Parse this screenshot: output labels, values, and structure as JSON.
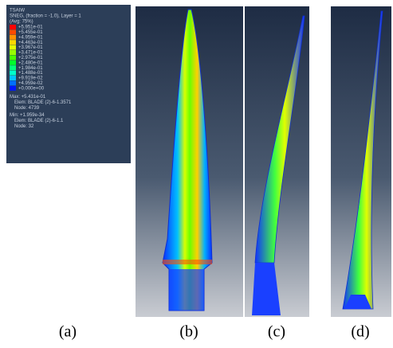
{
  "legend": {
    "title": "TSAIW",
    "subtitle": "SNEG, (fraction = -1.0), Layer = 1",
    "avg": "(Avg: 75%)",
    "entries": [
      {
        "label": "+5.951e-01",
        "color": "#ff0000"
      },
      {
        "label": "+5.455e-01",
        "color": "#ff4a00"
      },
      {
        "label": "+4.959e-01",
        "color": "#ff9300"
      },
      {
        "label": "+4.463e-01",
        "color": "#ffd800"
      },
      {
        "label": "+3.967e-01",
        "color": "#e2ff00"
      },
      {
        "label": "+3.471e-01",
        "color": "#98ff00"
      },
      {
        "label": "+2.975e-01",
        "color": "#4cff00"
      },
      {
        "label": "+2.480e-01",
        "color": "#00ff2d"
      },
      {
        "label": "+1.984e-01",
        "color": "#00ff7d"
      },
      {
        "label": "+1.488e-01",
        "color": "#00ffcc"
      },
      {
        "label": "+9.919e-02",
        "color": "#00c4ff"
      },
      {
        "label": "+4.959e-02",
        "color": "#0070ff"
      },
      {
        "label": "+0.000e+00",
        "color": "#0018ff"
      }
    ],
    "max_lines": [
      "Max: +5.431e-01",
      "Elem: BLADE (2)-6-1.3571",
      "Node: 4739"
    ],
    "min_lines": [
      "Min: +1.959e-34",
      "Elem: BLADE (2)-6-1.1",
      "Node: 32"
    ]
  },
  "captions": [
    "(a)",
    "(b)",
    "(c)",
    "(d)"
  ]
}
